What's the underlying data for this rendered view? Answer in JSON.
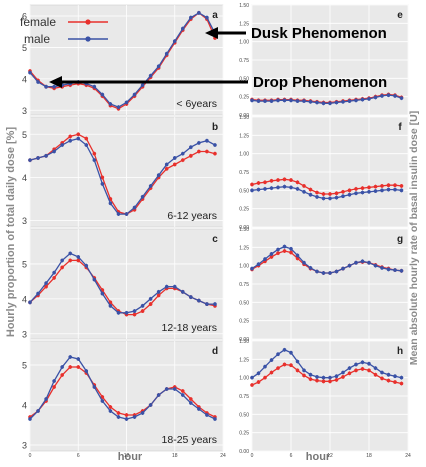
{
  "figure": {
    "left_axis_title": "Hourly proportion of total daily dose [%]",
    "right_axis_title": "Mean absolute hourly rate of basal insulin dose [U]",
    "x_axis_title": "hour",
    "legend": [
      {
        "label": "female",
        "color": "#e8302c"
      },
      {
        "label": "male",
        "color": "#3a52a6"
      }
    ],
    "annotations": {
      "dusk": "Dusk Phenomenon",
      "drop": "Drop Phenomenon"
    },
    "colors": {
      "female": "#e8302c",
      "male": "#3a52a6",
      "panel_bg": "#e9e9e9",
      "grid": "#ffffff"
    }
  },
  "chart_data": [
    {
      "type": "line",
      "panel": "a",
      "label": "< 6years",
      "x": [
        0,
        1,
        2,
        3,
        4,
        5,
        6,
        7,
        8,
        9,
        10,
        11,
        12,
        13,
        14,
        15,
        16,
        17,
        18,
        19,
        20,
        21,
        22,
        23
      ],
      "xticks": [
        0,
        6,
        12,
        18,
        24
      ],
      "ylim": [
        2.85,
        6.35
      ],
      "yticks": [
        3,
        4,
        5,
        6
      ],
      "series": [
        {
          "name": "female",
          "values": [
            4.25,
            3.95,
            3.75,
            3.7,
            3.75,
            3.8,
            3.85,
            3.8,
            3.7,
            3.45,
            3.15,
            3.05,
            3.2,
            3.45,
            3.75,
            4.05,
            4.35,
            4.75,
            5.15,
            5.55,
            5.9,
            6.1,
            5.9,
            5.3
          ]
        },
        {
          "name": "male",
          "values": [
            4.2,
            3.9,
            3.75,
            3.75,
            3.8,
            3.85,
            3.9,
            3.85,
            3.75,
            3.5,
            3.2,
            3.1,
            3.25,
            3.5,
            3.8,
            4.1,
            4.4,
            4.8,
            5.2,
            5.6,
            5.95,
            6.1,
            5.95,
            5.45
          ]
        }
      ]
    },
    {
      "type": "line",
      "panel": "b",
      "label": "6-12 years",
      "x": [
        0,
        1,
        2,
        3,
        4,
        5,
        6,
        7,
        8,
        9,
        10,
        11,
        12,
        13,
        14,
        15,
        16,
        17,
        18,
        19,
        20,
        21,
        22,
        23
      ],
      "xticks": [
        0,
        6,
        12,
        18,
        24
      ],
      "ylim": [
        2.85,
        5.4
      ],
      "yticks": [
        3,
        4,
        5
      ],
      "series": [
        {
          "name": "female",
          "values": [
            4.4,
            4.45,
            4.5,
            4.65,
            4.8,
            4.95,
            5.0,
            4.9,
            4.55,
            4.0,
            3.5,
            3.2,
            3.15,
            3.25,
            3.5,
            3.75,
            4.0,
            4.2,
            4.3,
            4.4,
            4.5,
            4.6,
            4.6,
            4.55
          ]
        },
        {
          "name": "male",
          "values": [
            4.4,
            4.45,
            4.5,
            4.6,
            4.75,
            4.85,
            4.9,
            4.75,
            4.4,
            3.85,
            3.4,
            3.15,
            3.15,
            3.3,
            3.55,
            3.8,
            4.05,
            4.3,
            4.45,
            4.55,
            4.7,
            4.8,
            4.85,
            4.75
          ]
        }
      ]
    },
    {
      "type": "line",
      "panel": "c",
      "label": "12-18 years",
      "x": [
        0,
        1,
        2,
        3,
        4,
        5,
        6,
        7,
        8,
        9,
        10,
        11,
        12,
        13,
        14,
        15,
        16,
        17,
        18,
        19,
        20,
        21,
        22,
        23
      ],
      "xticks": [
        0,
        6,
        12,
        18,
        24
      ],
      "ylim": [
        2.85,
        6.0
      ],
      "yticks": [
        3,
        4,
        5
      ],
      "series": [
        {
          "name": "female",
          "values": [
            3.9,
            4.1,
            4.35,
            4.6,
            4.9,
            5.1,
            5.1,
            4.9,
            4.6,
            4.25,
            3.9,
            3.65,
            3.55,
            3.55,
            3.65,
            3.85,
            4.1,
            4.3,
            4.3,
            4.2,
            4.05,
            3.95,
            3.85,
            3.8
          ]
        },
        {
          "name": "male",
          "values": [
            3.9,
            4.15,
            4.45,
            4.75,
            5.1,
            5.3,
            5.2,
            4.95,
            4.55,
            4.15,
            3.8,
            3.6,
            3.6,
            3.65,
            3.8,
            4.0,
            4.2,
            4.35,
            4.35,
            4.2,
            4.05,
            3.95,
            3.85,
            3.85
          ]
        }
      ]
    },
    {
      "type": "line",
      "panel": "d",
      "label": "18-25 years",
      "x": [
        0,
        1,
        2,
        3,
        4,
        5,
        6,
        7,
        8,
        9,
        10,
        11,
        12,
        13,
        14,
        15,
        16,
        17,
        18,
        19,
        20,
        21,
        22,
        23
      ],
      "xticks": [
        0,
        6,
        12,
        18,
        24
      ],
      "ylim": [
        2.85,
        5.6
      ],
      "yticks": [
        3,
        4,
        5
      ],
      "series": [
        {
          "name": "female",
          "values": [
            3.7,
            3.85,
            4.1,
            4.45,
            4.75,
            4.95,
            4.95,
            4.8,
            4.5,
            4.2,
            3.95,
            3.8,
            3.75,
            3.75,
            3.85,
            4.0,
            4.25,
            4.4,
            4.45,
            4.35,
            4.15,
            3.95,
            3.8,
            3.7
          ]
        },
        {
          "name": "male",
          "values": [
            3.65,
            3.85,
            4.15,
            4.6,
            4.95,
            5.2,
            5.15,
            4.85,
            4.45,
            4.1,
            3.85,
            3.7,
            3.65,
            3.7,
            3.8,
            4.0,
            4.25,
            4.4,
            4.4,
            4.25,
            4.05,
            3.9,
            3.75,
            3.65
          ]
        }
      ]
    },
    {
      "type": "line",
      "panel": "e",
      "x": [
        0,
        1,
        2,
        3,
        4,
        5,
        6,
        7,
        8,
        9,
        10,
        11,
        12,
        13,
        14,
        15,
        16,
        17,
        18,
        19,
        20,
        21,
        22,
        23
      ],
      "xticks": [
        0,
        6,
        12,
        18,
        24
      ],
      "ylim": [
        0,
        1.5
      ],
      "yticks": [
        0.0,
        0.25,
        0.5,
        0.75,
        1.0,
        1.25,
        1.5
      ],
      "series": [
        {
          "name": "female",
          "values": [
            0.21,
            0.2,
            0.2,
            0.2,
            0.21,
            0.21,
            0.21,
            0.2,
            0.2,
            0.19,
            0.18,
            0.17,
            0.17,
            0.18,
            0.19,
            0.2,
            0.21,
            0.22,
            0.23,
            0.25,
            0.27,
            0.28,
            0.27,
            0.24
          ]
        },
        {
          "name": "male",
          "values": [
            0.2,
            0.19,
            0.19,
            0.19,
            0.2,
            0.2,
            0.2,
            0.19,
            0.19,
            0.18,
            0.17,
            0.16,
            0.16,
            0.17,
            0.18,
            0.19,
            0.2,
            0.21,
            0.22,
            0.24,
            0.26,
            0.27,
            0.26,
            0.23
          ]
        }
      ]
    },
    {
      "type": "line",
      "panel": "f",
      "x": [
        0,
        1,
        2,
        3,
        4,
        5,
        6,
        7,
        8,
        9,
        10,
        11,
        12,
        13,
        14,
        15,
        16,
        17,
        18,
        19,
        20,
        21,
        22,
        23
      ],
      "xticks": [
        0,
        6,
        12,
        18,
        24
      ],
      "ylim": [
        0,
        1.5
      ],
      "yticks": [
        0.0,
        0.25,
        0.5,
        0.75,
        1.0,
        1.25,
        1.5
      ],
      "series": [
        {
          "name": "female",
          "values": [
            0.58,
            0.6,
            0.61,
            0.63,
            0.64,
            0.65,
            0.64,
            0.61,
            0.56,
            0.51,
            0.47,
            0.45,
            0.45,
            0.46,
            0.48,
            0.5,
            0.52,
            0.53,
            0.54,
            0.55,
            0.56,
            0.57,
            0.57,
            0.56
          ]
        },
        {
          "name": "male",
          "values": [
            0.5,
            0.51,
            0.52,
            0.53,
            0.54,
            0.55,
            0.54,
            0.52,
            0.48,
            0.44,
            0.41,
            0.39,
            0.39,
            0.4,
            0.42,
            0.44,
            0.46,
            0.47,
            0.48,
            0.49,
            0.5,
            0.51,
            0.51,
            0.5
          ]
        }
      ]
    },
    {
      "type": "line",
      "panel": "g",
      "x": [
        0,
        1,
        2,
        3,
        4,
        5,
        6,
        7,
        8,
        9,
        10,
        11,
        12,
        13,
        14,
        15,
        16,
        17,
        18,
        19,
        20,
        21,
        22,
        23
      ],
      "xticks": [
        0,
        6,
        12,
        18,
        24
      ],
      "ylim": [
        0,
        1.5
      ],
      "yticks": [
        0.0,
        0.25,
        0.5,
        0.75,
        1.0,
        1.25,
        1.5
      ],
      "series": [
        {
          "name": "female",
          "values": [
            0.95,
            1.0,
            1.06,
            1.12,
            1.17,
            1.2,
            1.18,
            1.1,
            1.02,
            0.96,
            0.92,
            0.9,
            0.9,
            0.92,
            0.96,
            1.0,
            1.04,
            1.05,
            1.04,
            1.01,
            0.98,
            0.96,
            0.94,
            0.93
          ]
        },
        {
          "name": "male",
          "values": [
            0.96,
            1.02,
            1.09,
            1.16,
            1.22,
            1.26,
            1.23,
            1.14,
            1.04,
            0.97,
            0.92,
            0.9,
            0.9,
            0.92,
            0.96,
            1.0,
            1.04,
            1.06,
            1.04,
            1.0,
            0.97,
            0.95,
            0.94,
            0.93
          ]
        }
      ]
    },
    {
      "type": "line",
      "panel": "h",
      "x": [
        0,
        1,
        2,
        3,
        4,
        5,
        6,
        7,
        8,
        9,
        10,
        11,
        12,
        13,
        14,
        15,
        16,
        17,
        18,
        19,
        20,
        21,
        22,
        23
      ],
      "xticks": [
        0,
        6,
        12,
        18,
        24
      ],
      "ylim": [
        0,
        1.5
      ],
      "yticks": [
        0.0,
        0.25,
        0.5,
        0.75,
        1.0,
        1.25,
        1.5
      ],
      "series": [
        {
          "name": "female",
          "values": [
            0.9,
            0.94,
            1.0,
            1.07,
            1.13,
            1.18,
            1.17,
            1.1,
            1.03,
            0.98,
            0.96,
            0.95,
            0.95,
            0.97,
            1.01,
            1.06,
            1.1,
            1.12,
            1.1,
            1.04,
            0.99,
            0.96,
            0.94,
            0.92
          ]
        },
        {
          "name": "male",
          "values": [
            1.0,
            1.06,
            1.15,
            1.24,
            1.32,
            1.38,
            1.34,
            1.22,
            1.1,
            1.04,
            1.01,
            1.0,
            1.0,
            1.02,
            1.07,
            1.13,
            1.18,
            1.21,
            1.19,
            1.13,
            1.07,
            1.04,
            1.02,
            1.0
          ]
        }
      ]
    }
  ]
}
